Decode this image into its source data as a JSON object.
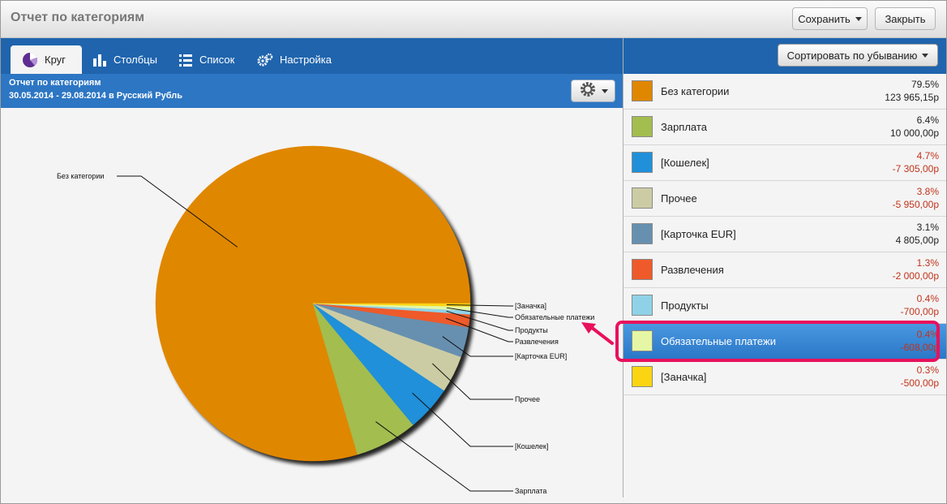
{
  "window": {
    "title": "Отчет по категориям"
  },
  "toolbar": {
    "save_label": "Сохранить",
    "close_label": "Закрыть"
  },
  "tabs": [
    {
      "label": "Круг",
      "icon": "pie-chart-icon",
      "active": true
    },
    {
      "label": "Столбцы",
      "icon": "bar-chart-icon",
      "active": false
    },
    {
      "label": "Список",
      "icon": "list-icon",
      "active": false
    },
    {
      "label": "Настройка",
      "icon": "gears-icon",
      "active": false
    }
  ],
  "report": {
    "title": "Отчет по категориям",
    "period": "30.05.2014 - 29.08.2014 в Русский Рубль"
  },
  "sort_button": {
    "label": "Сортировать по убыванию"
  },
  "colors": {
    "negative": "#c0341d",
    "positive": "#222222",
    "accent": "#1f64ad",
    "highlight": "#e8115c"
  },
  "categories": [
    {
      "name": "Без категории",
      "percent": "79.5%",
      "amount": "123 965,15р",
      "value": 79.5,
      "color": "#e08700",
      "negative": false,
      "selected": false
    },
    {
      "name": "Зарплата",
      "percent": "6.4%",
      "amount": "10 000,00р",
      "value": 6.4,
      "color": "#a3bd4f",
      "negative": false,
      "selected": false
    },
    {
      "name": "[Кошелек]",
      "percent": "4.7%",
      "amount": "-7 305,00р",
      "value": 4.7,
      "color": "#1f90d9",
      "negative": true,
      "selected": false
    },
    {
      "name": "Прочее",
      "percent": "3.8%",
      "amount": "-5 950,00р",
      "value": 3.8,
      "color": "#cccca4",
      "negative": true,
      "selected": false
    },
    {
      "name": "[Карточка EUR]",
      "percent": "3.1%",
      "amount": "4 805,00р",
      "value": 3.1,
      "color": "#6790b0",
      "negative": false,
      "selected": false
    },
    {
      "name": "Развлечения",
      "percent": "1.3%",
      "amount": "-2 000,00р",
      "value": 1.3,
      "color": "#ee5a2a",
      "negative": true,
      "selected": false
    },
    {
      "name": "Продукты",
      "percent": "0.4%",
      "amount": "-700,00р",
      "value": 0.4,
      "color": "#8fd2e8",
      "negative": true,
      "selected": false
    },
    {
      "name": "Обязательные платежи",
      "percent": "0.4%",
      "amount": "-608,00р",
      "value": 0.4,
      "color": "#e5f7a5",
      "negative": true,
      "selected": true
    },
    {
      "name": "[Заначка]",
      "percent": "0.3%",
      "amount": "-500,00р",
      "value": 0.3,
      "color": "#fcd512",
      "negative": true,
      "selected": false
    }
  ],
  "chart_data": {
    "type": "pie",
    "title": "",
    "slices": [
      {
        "label": "Без категории",
        "value": 79.5
      },
      {
        "label": "Зарплата",
        "value": 6.4
      },
      {
        "label": "[Кошелек]",
        "value": 4.7
      },
      {
        "label": "Прочее",
        "value": 3.8
      },
      {
        "label": "[Карточка EUR]",
        "value": 3.1
      },
      {
        "label": "Развлечения",
        "value": 1.3
      },
      {
        "label": "Продукты",
        "value": 0.4
      },
      {
        "label": "Обязательные платежи",
        "value": 0.4
      },
      {
        "label": "[Заначка]",
        "value": 0.3
      }
    ],
    "unit": "%",
    "legend": "right-side list"
  }
}
